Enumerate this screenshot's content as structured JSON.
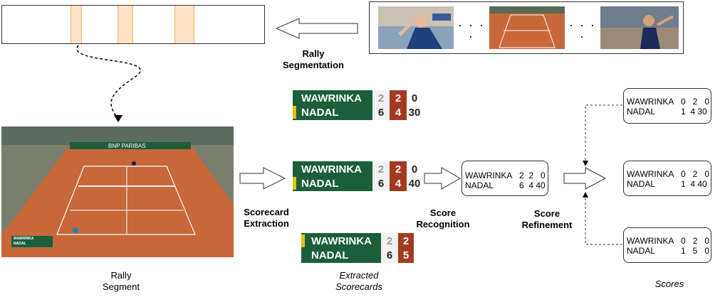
{
  "labels": {
    "rally_segmentation_1": "Rally",
    "rally_segmentation_2": "Segmentation",
    "rally_segment_1": "Rally",
    "rally_segment_2": "Segment",
    "scorecard_extraction_1": "Scorecard",
    "scorecard_extraction_2": "Extraction",
    "score_recognition_1": "Score",
    "score_recognition_2": "Recognition",
    "score_refinement_1": "Score",
    "score_refinement_2": "Refinement",
    "extracted_scorecards_1": "Extracted",
    "extracted_scorecards_2": "Scorecards",
    "scores": "Scores"
  },
  "court_banner": "BNP PARIBAS",
  "scorecards": [
    {
      "p1": "WAWRINKA",
      "p2": "NADAL",
      "p1_scores": [
        "2",
        "2",
        "0"
      ],
      "p2_scores": [
        "6",
        "4",
        "30"
      ]
    },
    {
      "p1": "WAWRINKA",
      "p2": "NADAL",
      "p1_scores": [
        "2",
        "2",
        "0"
      ],
      "p2_scores": [
        "6",
        "4",
        "40"
      ]
    },
    {
      "p1": "WAWRINKA",
      "p2": "NADAL",
      "p1_scores": [
        "2",
        "2"
      ],
      "p2_scores": [
        "6",
        "5"
      ]
    }
  ],
  "recognized_score": {
    "p1": "WAWRINKA",
    "p1_scores": "2  2   0",
    "p2": "NADAL",
    "p2_scores": "6  4 40"
  },
  "refined_scores": [
    {
      "p1": "WAWRINKA",
      "p1_scores": "0   2   0",
      "p2": "NADAL",
      "p2_scores": "1  4 30"
    },
    {
      "p1": "WAWRINKA",
      "p1_scores": "0   2   0",
      "p2": "NADAL",
      "p2_scores": "1  4 40"
    },
    {
      "p1": "WAWRINKA",
      "p1_scores": "0   2   0",
      "p2": "NADAL",
      "p2_scores": "1   5   0"
    }
  ],
  "colors": {
    "green": "#1b5e3a",
    "rust": "#a33a1f",
    "segment": "#fde3c4",
    "clay": "#c8683a"
  }
}
